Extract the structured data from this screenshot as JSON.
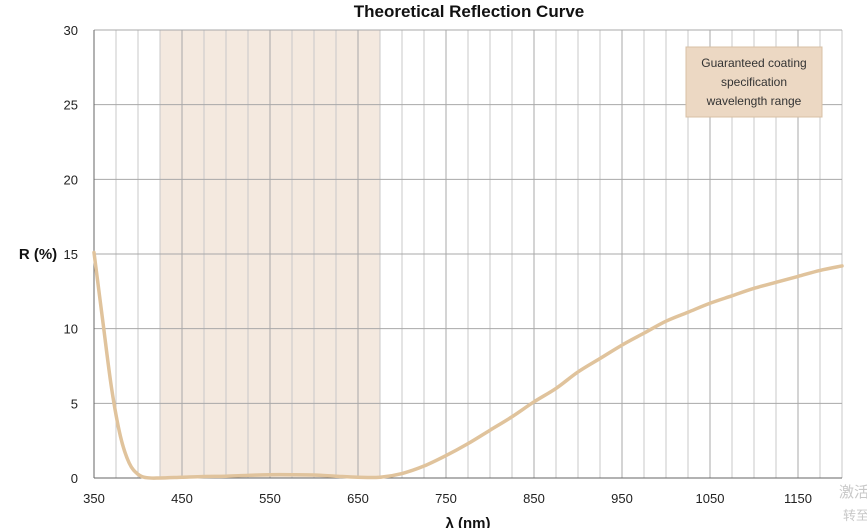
{
  "chart_data": {
    "type": "line",
    "title": "Theoretical Reflection Curve",
    "xlabel": "λ (nm)",
    "ylabel": "R (%)",
    "xlim": [
      350,
      1200
    ],
    "ylim": [
      0,
      30
    ],
    "xticks": [
      350,
      450,
      550,
      650,
      750,
      850,
      950,
      1050,
      1150
    ],
    "yticks": [
      0,
      5,
      10,
      15,
      20,
      25,
      30
    ],
    "grid": true,
    "highlight_band": {
      "x_range": [
        425,
        675
      ],
      "label": "Guaranteed coating specification wavelength range",
      "color": "#f4e9df"
    },
    "legend_lines": [
      "Guaranteed coating",
      "specification",
      "wavelength range"
    ],
    "legend_position": "top-right",
    "series": [
      {
        "color": "#e0c39c",
        "points": [
          [
            350,
            15.1
          ],
          [
            360,
            10.5
          ],
          [
            370,
            6.0
          ],
          [
            380,
            2.8
          ],
          [
            390,
            1.0
          ],
          [
            400,
            0.25
          ],
          [
            410,
            0.02
          ],
          [
            425,
            0.0
          ],
          [
            450,
            0.05
          ],
          [
            475,
            0.1
          ],
          [
            500,
            0.12
          ],
          [
            525,
            0.18
          ],
          [
            550,
            0.22
          ],
          [
            575,
            0.22
          ],
          [
            600,
            0.2
          ],
          [
            625,
            0.12
          ],
          [
            650,
            0.05
          ],
          [
            675,
            0.05
          ],
          [
            700,
            0.3
          ],
          [
            725,
            0.8
          ],
          [
            750,
            1.5
          ],
          [
            775,
            2.3
          ],
          [
            800,
            3.2
          ],
          [
            825,
            4.1
          ],
          [
            850,
            5.1
          ],
          [
            875,
            6.0
          ],
          [
            900,
            7.1
          ],
          [
            925,
            8.0
          ],
          [
            950,
            8.9
          ],
          [
            975,
            9.7
          ],
          [
            1000,
            10.5
          ],
          [
            1025,
            11.1
          ],
          [
            1050,
            11.7
          ],
          [
            1075,
            12.2
          ],
          [
            1100,
            12.7
          ],
          [
            1125,
            13.1
          ],
          [
            1150,
            13.5
          ],
          [
            1175,
            13.9
          ],
          [
            1200,
            14.2
          ]
        ]
      }
    ]
  },
  "watermark": {
    "line1": "激活",
    "line2": "转至"
  }
}
